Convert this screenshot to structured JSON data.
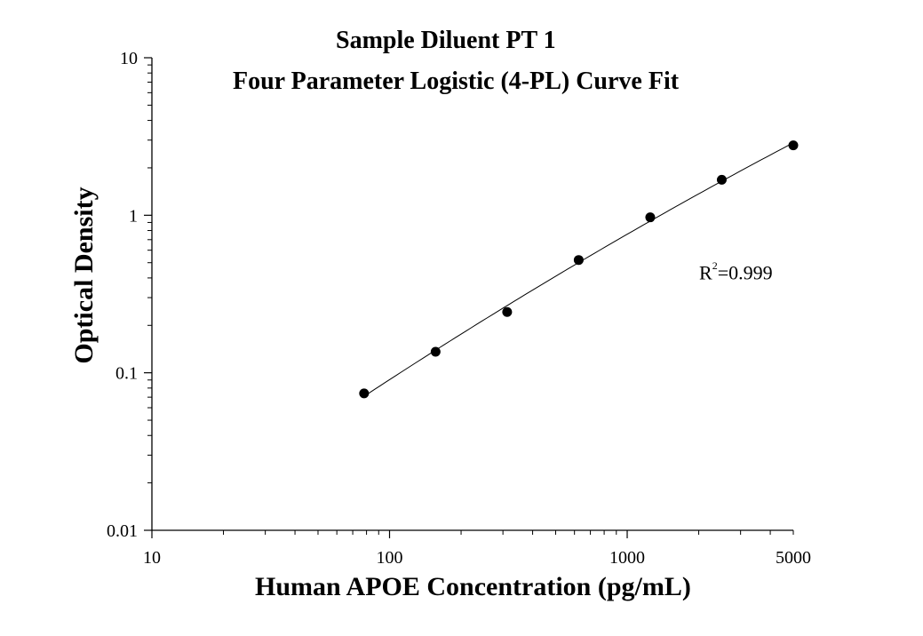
{
  "chart_data": {
    "type": "scatter",
    "title": "Sample Diluent PT 1",
    "subtitle": "Four Parameter Logistic (4-PL) Curve Fit",
    "xlabel": "Human APOE Concentration (pg/mL)",
    "ylabel": "Optical Density",
    "x_scale": "log",
    "y_scale": "log",
    "xlim": [
      10,
      5000
    ],
    "ylim": [
      0.01,
      10
    ],
    "x_ticks": [
      {
        "value": 10,
        "label": "10"
      },
      {
        "value": 100,
        "label": "100"
      },
      {
        "value": 1000,
        "label": "1000"
      },
      {
        "value": 5000,
        "label": "5000"
      }
    ],
    "y_ticks": [
      {
        "value": 0.01,
        "label": "0.01"
      },
      {
        "value": 0.1,
        "label": "0.1"
      },
      {
        "value": 1,
        "label": "1"
      },
      {
        "value": 10,
        "label": "10"
      }
    ],
    "series": [
      {
        "x": [
          78.125,
          156.25,
          312.5,
          625,
          1250,
          2500,
          5000
        ],
        "y": [
          0.074,
          0.136,
          0.243,
          0.52,
          0.97,
          1.68,
          2.78
        ]
      }
    ],
    "fit_curve": {
      "x_range": [
        78.125,
        5000
      ],
      "y_start": 0.0655,
      "y_end": 2.75
    },
    "annotation": {
      "r_prefix": "R",
      "r_sup": "2",
      "r_value": "=0.999"
    },
    "grid": false,
    "legend": "none",
    "colors": {
      "marker": "#000000",
      "curve": "#000000",
      "axis": "#000000"
    }
  }
}
